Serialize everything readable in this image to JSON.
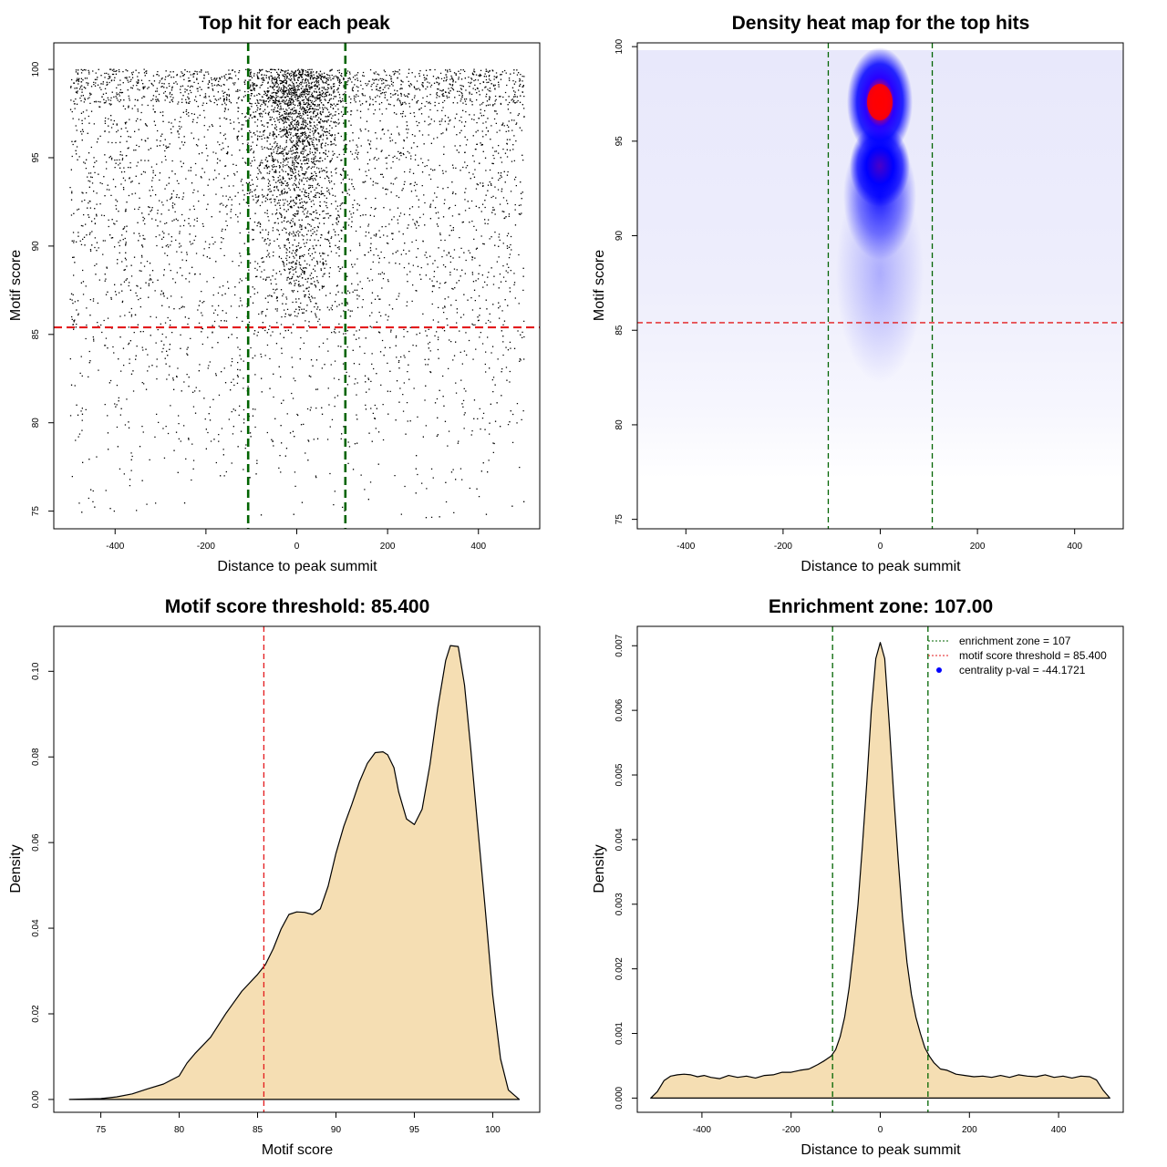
{
  "chart_data": [
    {
      "panel": "top-left",
      "type": "scatter",
      "title": "Top hit for each peak",
      "xlabel": "Distance to peak summit",
      "ylabel": "Motif score",
      "xlim": [
        -535,
        535
      ],
      "ylim": [
        74,
        101.5
      ],
      "xticks": [
        -400,
        -200,
        0,
        200,
        400
      ],
      "yticks": [
        75,
        80,
        85,
        90,
        95,
        100
      ],
      "point_summary": {
        "n_points_approx": 14000,
        "x_range": [
          -500,
          500
        ],
        "score_range": [
          74.6,
          100
        ],
        "central_cluster": {
          "x_range": [
            -107,
            107
          ],
          "score_range": [
            85,
            100
          ],
          "peak_score": 97
        }
      },
      "hline": {
        "y": 85.4,
        "color": "#e41a1c",
        "style": "dashed"
      },
      "vlines": [
        {
          "x": -107,
          "color": "#006400",
          "style": "dashed"
        },
        {
          "x": 107,
          "color": "#006400",
          "style": "dashed"
        }
      ]
    },
    {
      "panel": "top-right",
      "type": "heatmap",
      "title": "Density heat map for the top hits",
      "xlabel": "Distance to peak summit",
      "ylabel": "Motif score",
      "xlim": [
        -500,
        500
      ],
      "ylim": [
        74.5,
        100.2
      ],
      "xticks": [
        -400,
        -200,
        0,
        200,
        400
      ],
      "yticks": [
        75,
        80,
        85,
        90,
        95,
        100
      ],
      "color_scale": [
        "#ffffff",
        "#0000ff",
        "#ff0000"
      ],
      "hotspots": [
        {
          "x": 0,
          "y": 96.9,
          "intensity": "max"
        },
        {
          "x": 0,
          "y": 93.3,
          "intensity": "high"
        }
      ],
      "hline": {
        "y": 85.4,
        "color": "#e41a1c",
        "style": "dashed"
      },
      "vlines": [
        {
          "x": -107,
          "color": "#006400",
          "style": "dashed"
        },
        {
          "x": 107,
          "color": "#006400",
          "style": "dashed"
        }
      ]
    },
    {
      "panel": "bottom-left",
      "type": "area",
      "title": "Motif score threshold: 85.400",
      "xlabel": "Motif score",
      "ylabel": "Density",
      "xlim": [
        72,
        103
      ],
      "ylim": [
        -0.003,
        0.1105
      ],
      "xticks": [
        75,
        80,
        85,
        90,
        95,
        100
      ],
      "yticks": [
        0.0,
        0.02,
        0.04,
        0.06,
        0.08,
        0.1
      ],
      "ytick_labels": [
        "0.00",
        "0.02",
        "0.04",
        "0.06",
        "0.08",
        "0.10"
      ],
      "fill_color": "#f5deb3",
      "x": [
        73,
        75,
        76,
        77,
        78,
        79,
        80,
        80.5,
        81,
        82,
        83,
        84,
        85,
        85.5,
        86,
        86.5,
        87,
        87.5,
        88,
        88.5,
        89,
        89.5,
        90,
        90.5,
        91,
        91.5,
        92,
        92.5,
        93,
        93.3,
        93.7,
        94,
        94.5,
        95,
        95.5,
        96,
        96.5,
        97,
        97.3,
        97.8,
        98.2,
        98.6,
        99,
        99.5,
        100,
        100.5,
        101,
        101.7
      ],
      "y": [
        0.0,
        0.0002,
        0.0006,
        0.0013,
        0.0025,
        0.0036,
        0.0055,
        0.0085,
        0.0107,
        0.0145,
        0.0202,
        0.0253,
        0.0292,
        0.0315,
        0.0352,
        0.0398,
        0.0432,
        0.0438,
        0.0437,
        0.0432,
        0.0445,
        0.0498,
        0.0575,
        0.0638,
        0.0688,
        0.0742,
        0.0785,
        0.081,
        0.0812,
        0.0805,
        0.0775,
        0.0718,
        0.0655,
        0.0642,
        0.0678,
        0.0782,
        0.0915,
        0.1025,
        0.106,
        0.1058,
        0.0968,
        0.082,
        0.0655,
        0.0455,
        0.0245,
        0.0095,
        0.0022,
        0.0
      ],
      "vline": {
        "x": 85.4,
        "color": "#e41a1c",
        "style": "dashed"
      }
    },
    {
      "panel": "bottom-right",
      "type": "area",
      "title": "Enrichment zone: 107.00",
      "xlabel": "Distance to peak summit",
      "ylabel": "Density",
      "xlim": [
        -545,
        545
      ],
      "ylim": [
        -0.00022,
        0.0073
      ],
      "xticks": [
        -400,
        -200,
        0,
        200,
        400
      ],
      "yticks": [
        0.0,
        0.001,
        0.002,
        0.003,
        0.004,
        0.005,
        0.006,
        0.007
      ],
      "ytick_labels": [
        "0.000",
        "0.001",
        "0.002",
        "0.003",
        "0.004",
        "0.005",
        "0.006",
        "0.007"
      ],
      "fill_color": "#f5deb3",
      "x": [
        -515,
        -500,
        -485,
        -470,
        -455,
        -440,
        -425,
        -410,
        -395,
        -380,
        -360,
        -340,
        -320,
        -300,
        -280,
        -260,
        -240,
        -220,
        -200,
        -180,
        -160,
        -140,
        -125,
        -110,
        -100,
        -90,
        -80,
        -70,
        -60,
        -50,
        -40,
        -30,
        -20,
        -10,
        0,
        10,
        20,
        30,
        40,
        50,
        60,
        70,
        80,
        90,
        100,
        110,
        120,
        135,
        150,
        170,
        190,
        210,
        230,
        250,
        270,
        290,
        310,
        330,
        350,
        370,
        390,
        410,
        430,
        450,
        470,
        485,
        500,
        515
      ],
      "y": [
        0.0,
        0.0001,
        0.00027,
        0.00034,
        0.00036,
        0.00037,
        0.00036,
        0.00033,
        0.00035,
        0.00032,
        0.0003,
        0.00035,
        0.00032,
        0.00034,
        0.00031,
        0.00035,
        0.00036,
        0.0004,
        0.0004,
        0.00043,
        0.00045,
        0.00052,
        0.00058,
        0.00065,
        0.00075,
        0.00095,
        0.00125,
        0.0017,
        0.0023,
        0.003,
        0.0039,
        0.0049,
        0.006,
        0.0068,
        0.00705,
        0.0068,
        0.0058,
        0.0047,
        0.0037,
        0.0028,
        0.0021,
        0.0016,
        0.00125,
        0.001,
        0.00078,
        0.00065,
        0.00055,
        0.00045,
        0.00043,
        0.00037,
        0.00035,
        0.00033,
        0.00034,
        0.00032,
        0.00035,
        0.00032,
        0.00036,
        0.00034,
        0.00033,
        0.00036,
        0.00032,
        0.00034,
        0.00031,
        0.00034,
        0.00033,
        0.00028,
        0.00012,
        0.0
      ],
      "vlines": [
        {
          "x": -107,
          "color": "#006400",
          "style": "dashed"
        },
        {
          "x": 107,
          "color": "#006400",
          "style": "dashed"
        }
      ],
      "legend": {
        "position": "top-right",
        "entries": [
          {
            "label": "enrichment zone = 107",
            "color": "#006400",
            "kind": "dotted-line"
          },
          {
            "label": "motif score threshold = 85.400",
            "color": "#e41a1c",
            "kind": "dotted-line"
          },
          {
            "label": "centrality p-val = -44.1721",
            "color": "#0000ff",
            "kind": "point"
          }
        ]
      }
    }
  ]
}
